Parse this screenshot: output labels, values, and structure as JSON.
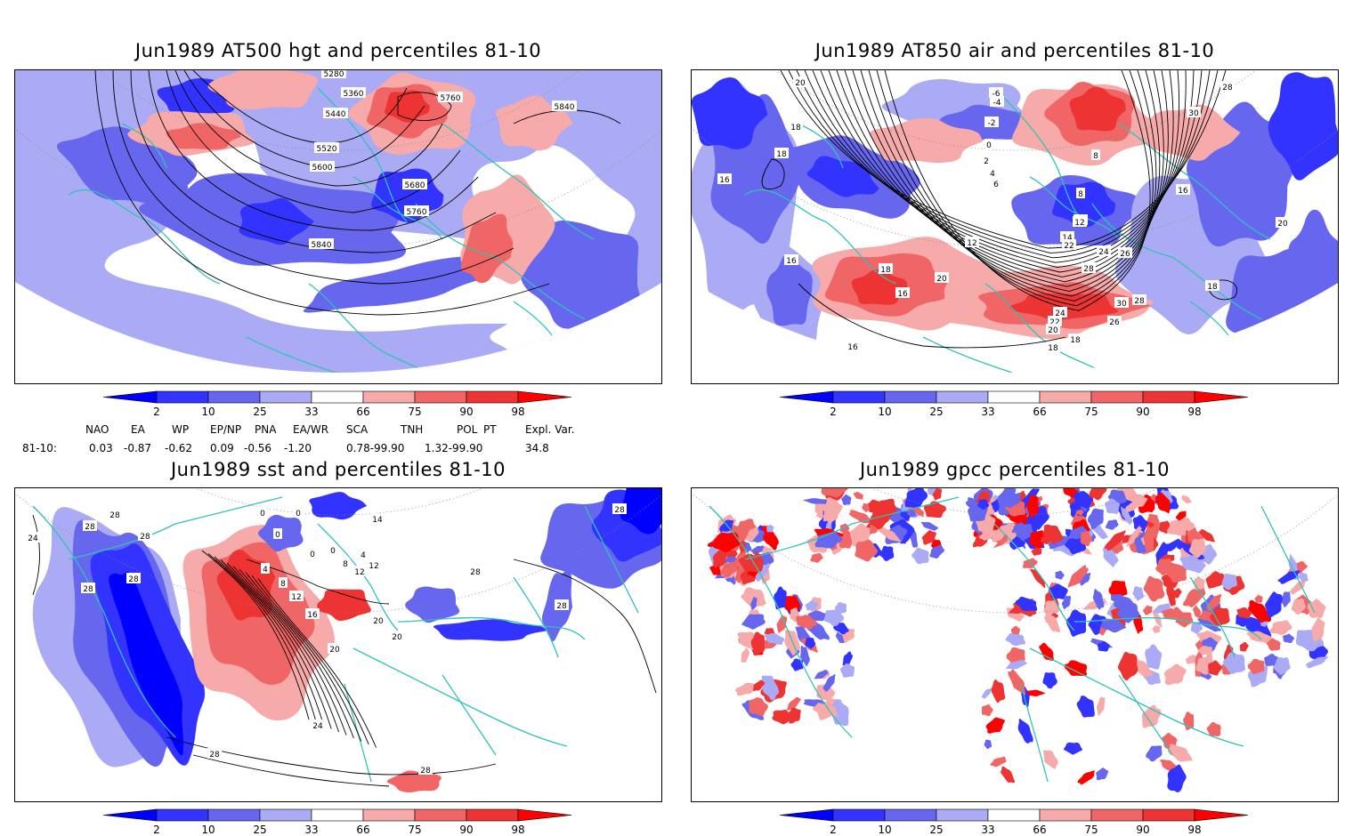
{
  "panels": [
    {
      "id": "p1",
      "title": "Jun1989 AT500 hgt and percentiles 81-10",
      "contour_labels": [
        "5280",
        "5360",
        "5440",
        "5520",
        "5600",
        "5680",
        "5760",
        "5840",
        "5760",
        "5840"
      ]
    },
    {
      "id": "p2",
      "title": "Jun1989 AT850 air and percentiles 81-10",
      "contour_labels": [
        "20",
        "18",
        "16",
        "18",
        "16",
        "16",
        "18",
        "20",
        "-6",
        "-4",
        "-2",
        "0",
        "2",
        "4",
        "6",
        "8",
        "10",
        "12",
        "12",
        "14",
        "22",
        "24",
        "26",
        "28",
        "30",
        "28",
        "26",
        "24",
        "22",
        "20",
        "18",
        "16",
        "18",
        "28",
        "30",
        "16",
        "20",
        "18",
        "8"
      ]
    },
    {
      "id": "p3",
      "title": "Jun1989 sst and percentiles 81-10",
      "contour_labels": [
        "28",
        "28",
        "24",
        "28",
        "28",
        "28",
        "0",
        "0",
        "0",
        "0",
        "0",
        "4",
        "8",
        "12",
        "16",
        "20",
        "24",
        "28",
        "28",
        "28",
        "20",
        "20",
        "28",
        "28",
        "12",
        "14",
        "12",
        "8",
        "4"
      ]
    },
    {
      "id": "p4",
      "title": "Jun1989 gpcc percentiles 81-10",
      "contour_labels": []
    }
  ],
  "colorbar": {
    "labels": [
      "2",
      "10",
      "25",
      "33",
      "66",
      "75",
      "90",
      "98"
    ],
    "colors": {
      "below": "#0000ff",
      "c2_10": "#3333ff",
      "c10_25": "#6666ee",
      "c25_33": "#aaaaf5",
      "c66_75": "#f7aaaa",
      "c75_90": "#f06666",
      "c90_98": "#ee3333",
      "above": "#ff0000"
    }
  },
  "indices": {
    "headers": [
      "NAO",
      "EA",
      "WP",
      "EP/NP",
      "PNA",
      "EA/WR",
      "SCA",
      "TNH",
      "POL",
      "PT",
      "Expl. Var."
    ],
    "row_label": "81-10:",
    "values": [
      "0.03",
      "-0.87",
      "-0.62",
      "0.09",
      "-0.56",
      "-1.20",
      "0.78-99.90",
      "1.32-99.90",
      "34.8"
    ]
  },
  "colors": {
    "coast": "#2ec4b6",
    "contour": "#000000",
    "grid": "#888888"
  }
}
